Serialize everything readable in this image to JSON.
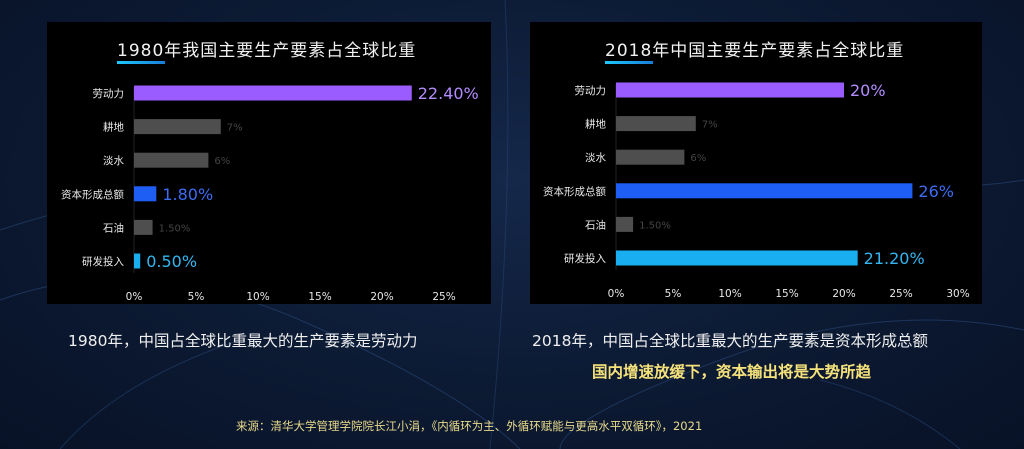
{
  "colors": {
    "labor": "#9b5cff",
    "capital": "#1e5ef5",
    "rnd": "#19aef0",
    "gray": "#4e4e4e",
    "label_gray": "#444444",
    "caption": "#f0f0f0",
    "highlight": "#f6e27a"
  },
  "left": {
    "title": "1980年我国主要生产要素占全球比重",
    "caption": "1980年，中国占全球比重最大的生产要素是劳动力"
  },
  "right": {
    "title": "2018年中国主要生产要素占全球比重",
    "caption": "2018年，中国占全球比重最大的生产要素是资本形成总额",
    "highlight": "国内增速放缓下，资本输出将是大势所趋"
  },
  "source": "来源：清华大学管理学院院长江小涓，《内循环为主、外循环赋能与更高水平双循环》，2021",
  "chart_data": [
    {
      "type": "bar",
      "orientation": "horizontal",
      "title": "1980年我国主要生产要素占全球比重",
      "categories": [
        "劳动力",
        "耕地",
        "淡水",
        "资本形成总额",
        "石油",
        "研发投入"
      ],
      "values": [
        22.4,
        7,
        6,
        1.8,
        1.5,
        0.5
      ],
      "value_labels": [
        "22.40%",
        "7%",
        "6%",
        "1.80%",
        "1.50%",
        "0.50%"
      ],
      "bar_colors": [
        "#9b5cff",
        "#4e4e4e",
        "#4e4e4e",
        "#1e5ef5",
        "#4e4e4e",
        "#19aef0"
      ],
      "label_colors": [
        "#b48cff",
        "#444444",
        "#444444",
        "#3d6cf5",
        "#444444",
        "#33b6f2"
      ],
      "xlim": [
        0,
        25
      ],
      "xticks": [
        "0%",
        "5%",
        "10%",
        "15%",
        "20%",
        "25%"
      ],
      "grid": false
    },
    {
      "type": "bar",
      "orientation": "horizontal",
      "title": "2018年中国主要生产要素占全球比重",
      "categories": [
        "劳动力",
        "耕地",
        "淡水",
        "资本形成总额",
        "石油",
        "研发投入"
      ],
      "values": [
        20,
        7,
        6,
        26,
        1.5,
        21.2
      ],
      "value_labels": [
        "20%",
        "7%",
        "6%",
        "26%",
        "1.50%",
        "21.20%"
      ],
      "bar_colors": [
        "#9b5cff",
        "#4e4e4e",
        "#4e4e4e",
        "#1e5ef5",
        "#4e4e4e",
        "#19aef0"
      ],
      "label_colors": [
        "#b48cff",
        "#444444",
        "#444444",
        "#3d6cf5",
        "#444444",
        "#33b6f2"
      ],
      "xlim": [
        0,
        30
      ],
      "xticks": [
        "0%",
        "5%",
        "10%",
        "15%",
        "20%",
        "25%",
        "30%"
      ],
      "grid": false
    }
  ]
}
